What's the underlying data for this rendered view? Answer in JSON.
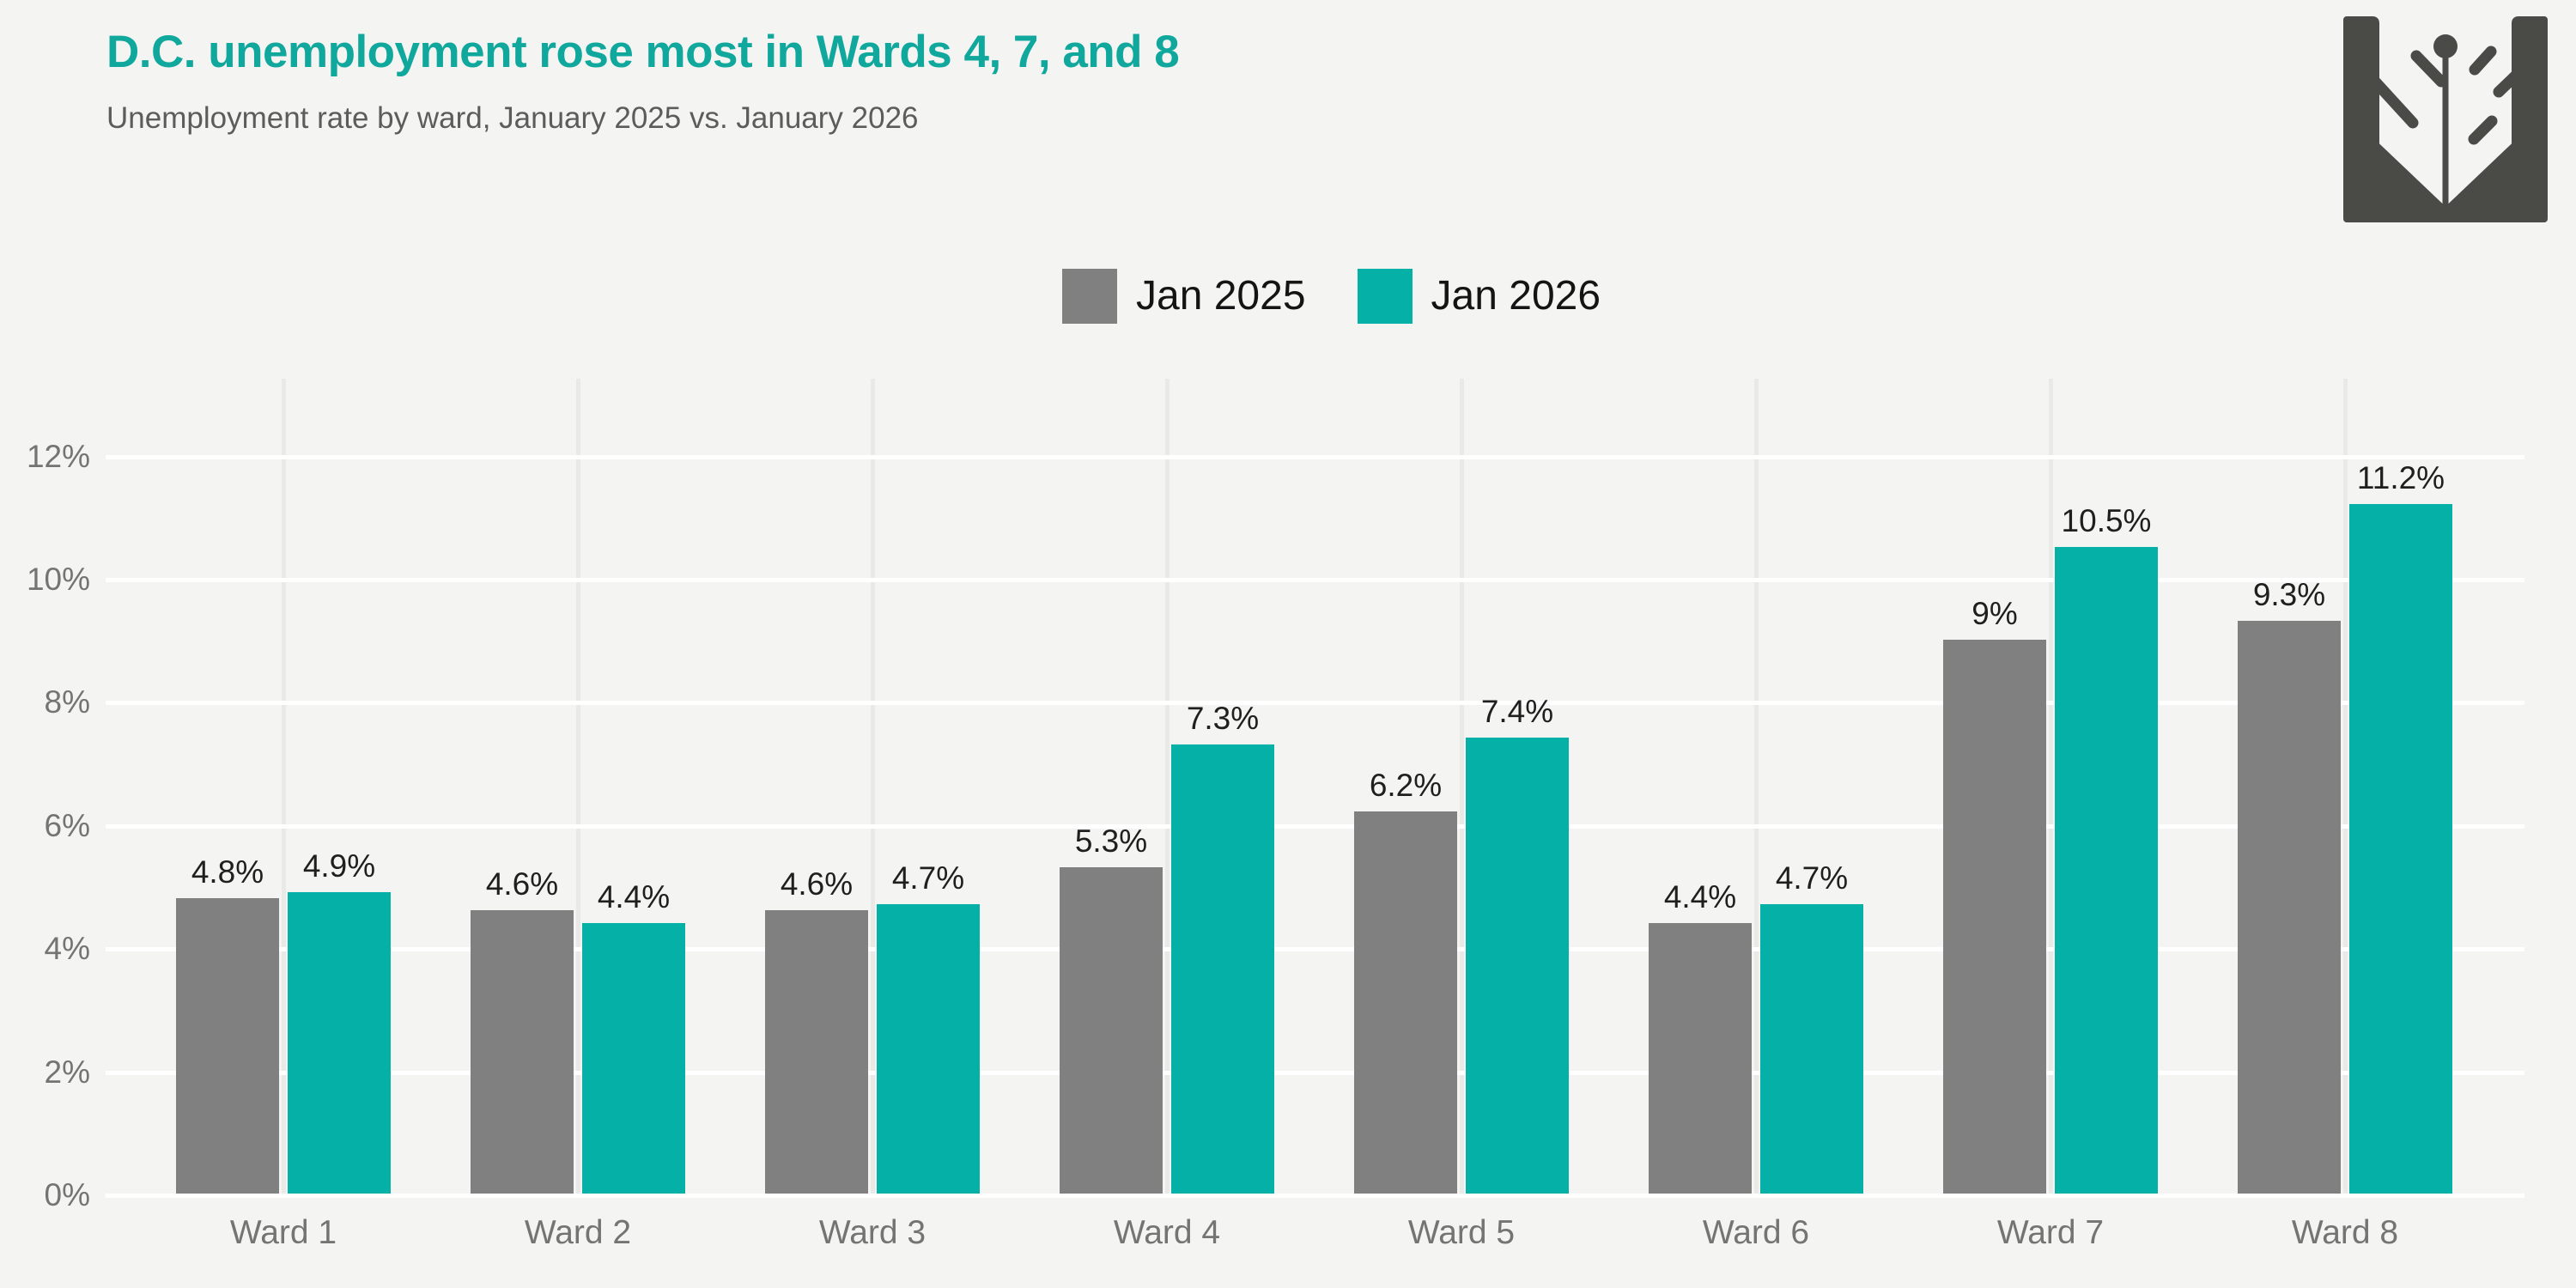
{
  "header": {
    "title": "D.C. unemployment rose most in Wards 4, 7, and 8",
    "subtitle": "Unemployment rate by ward, January 2025 vs. January 2026"
  },
  "logo": {
    "name": "quill-publisher-logo",
    "color": "#4a4a47"
  },
  "chart_data": {
    "type": "bar",
    "title": "D.C. unemployment rose most in Wards 4, 7, and 8",
    "subtitle": "Unemployment rate by ward, January 2025 vs. January 2026",
    "categories": [
      "Ward 1",
      "Ward 2",
      "Ward 3",
      "Ward 4",
      "Ward 5",
      "Ward 6",
      "Ward 7",
      "Ward 8"
    ],
    "series": [
      {
        "name": "Jan 2025",
        "color": "#808080",
        "values": [
          4.8,
          4.6,
          4.6,
          5.3,
          6.2,
          4.4,
          9,
          9.3
        ],
        "labels": [
          "4.8%",
          "4.6%",
          "4.6%",
          "5.3%",
          "6.2%",
          "4.4%",
          "9%",
          "9.3%"
        ]
      },
      {
        "name": "Jan 2026",
        "color": "#05b0a7",
        "values": [
          4.9,
          4.4,
          4.7,
          7.3,
          7.4,
          4.7,
          10.5,
          11.2
        ],
        "labels": [
          "4.9%",
          "4.4%",
          "4.7%",
          "7.3%",
          "7.4%",
          "4.7%",
          "10.5%",
          "11.2%"
        ]
      }
    ],
    "xlabel": "",
    "ylabel": "",
    "y_ticks": [
      "0%",
      "2%",
      "4%",
      "6%",
      "8%",
      "10%",
      "12%"
    ],
    "y_tick_values": [
      0,
      2,
      4,
      6,
      8,
      10,
      12
    ],
    "ylim": [
      0,
      13.2
    ],
    "grid": true,
    "legend_position": "top-center"
  },
  "colors": {
    "background": "#f4f4f3",
    "title_teal": "#10a79c",
    "subtitle_text": "#5c5c5c",
    "bar_gray": "#808080",
    "bar_teal": "#05b0a7",
    "grid_horizontal": "#ffffff",
    "grid_vertical": "#e9e9e8",
    "axis_label": "#747474",
    "value_label": "#1f1f1f",
    "legend_text": "#141414",
    "logo": "#4a4a47"
  }
}
